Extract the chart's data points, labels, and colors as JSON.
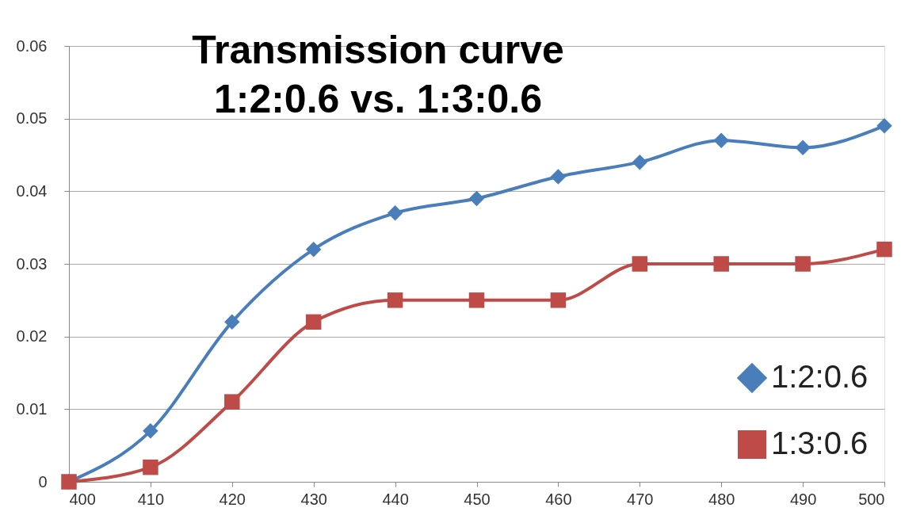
{
  "chart_data": {
    "type": "line",
    "title": "Transmission curve\n1:2:0.6 vs. 1:3:0.6",
    "x": [
      400,
      410,
      420,
      430,
      440,
      450,
      460,
      470,
      480,
      490,
      500
    ],
    "series": [
      {
        "name": "1:2:0.6",
        "color": "#4a7ebb",
        "marker": "diamond",
        "values": [
          0,
          0.007,
          0.022,
          0.032,
          0.037,
          0.039,
          0.042,
          0.044,
          0.047,
          0.046,
          0.049
        ]
      },
      {
        "name": "1:3:0.6",
        "color": "#be4b48",
        "marker": "square",
        "values": [
          0,
          0.002,
          0.011,
          0.022,
          0.025,
          0.025,
          0.025,
          0.03,
          0.03,
          0.03,
          0.032
        ]
      }
    ],
    "xlim": [
      400,
      500
    ],
    "xticks": [
      400,
      410,
      420,
      430,
      440,
      450,
      460,
      470,
      480,
      490,
      500
    ],
    "ylim": [
      0,
      0.06
    ],
    "yticks": [
      0,
      0.01,
      0.02,
      0.03,
      0.04,
      0.05,
      0.06
    ],
    "grid": "y",
    "legend": "bottom right",
    "line_style": "solid"
  }
}
